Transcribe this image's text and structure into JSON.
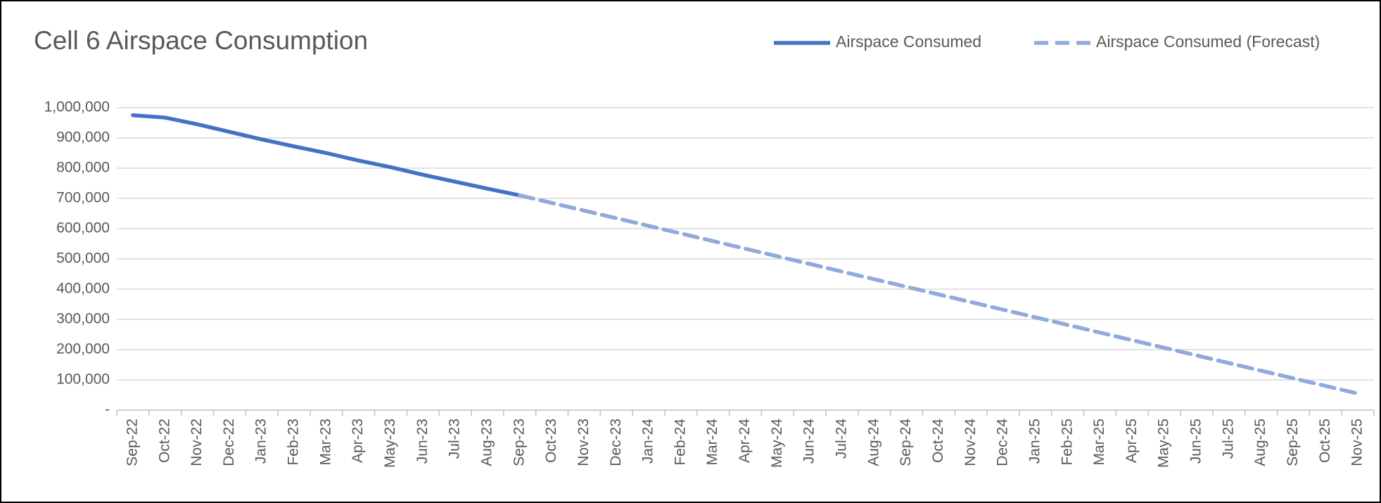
{
  "chart_data": {
    "type": "line",
    "title": "Cell 6 Airspace Consumption",
    "categories": [
      "Sep-22",
      "Oct-22",
      "Nov-22",
      "Dec-22",
      "Jan-23",
      "Feb-23",
      "Mar-23",
      "Apr-23",
      "May-23",
      "Jun-23",
      "Jul-23",
      "Aug-23",
      "Sep-23",
      "Oct-23",
      "Nov-23",
      "Dec-23",
      "Jan-24",
      "Feb-24",
      "Mar-24",
      "Apr-24",
      "May-24",
      "Jun-24",
      "Jul-24",
      "Aug-24",
      "Sep-24",
      "Oct-24",
      "Nov-24",
      "Dec-24",
      "Jan-25",
      "Feb-25",
      "Mar-25",
      "Apr-25",
      "May-25",
      "Jun-25",
      "Jul-25",
      "Aug-25",
      "Sep-25",
      "Oct-25",
      "Nov-25"
    ],
    "series": [
      {
        "name": "Airspace Consumed",
        "color": "#4472c4",
        "dashed": false,
        "values": [
          975000,
          967000,
          945000,
          920000,
          895000,
          872000,
          850000,
          825000,
          803000,
          778000,
          755000,
          732000,
          710000,
          null,
          null,
          null,
          null,
          null,
          null,
          null,
          null,
          null,
          null,
          null,
          null,
          null,
          null,
          null,
          null,
          null,
          null,
          null,
          null,
          null,
          null,
          null,
          null,
          null,
          null
        ]
      },
      {
        "name": "Airspace Consumed (Forecast)",
        "color": "#8faadc",
        "dashed": true,
        "values": [
          null,
          null,
          null,
          null,
          null,
          null,
          null,
          null,
          null,
          null,
          null,
          null,
          710000,
          684800,
          659600,
          634400,
          609200,
          584000,
          558800,
          533600,
          508400,
          483200,
          458000,
          432800,
          407600,
          382400,
          357200,
          332000,
          306800,
          281600,
          256400,
          231200,
          206000,
          180800,
          155600,
          130400,
          105200,
          80000,
          54800
        ]
      }
    ],
    "ylim": [
      0,
      1000000
    ],
    "yticks": [
      {
        "value": 0,
        "label": "-"
      },
      {
        "value": 100000,
        "label": "100,000"
      },
      {
        "value": 200000,
        "label": "200,000"
      },
      {
        "value": 300000,
        "label": "300,000"
      },
      {
        "value": 400000,
        "label": "400,000"
      },
      {
        "value": 500000,
        "label": "500,000"
      },
      {
        "value": 600000,
        "label": "600,000"
      },
      {
        "value": 700000,
        "label": "700,000"
      },
      {
        "value": 800000,
        "label": "800,000"
      },
      {
        "value": 900000,
        "label": "900,000"
      },
      {
        "value": 1000000,
        "label": "1,000,000"
      }
    ],
    "grid": true,
    "legend": "top-right"
  }
}
